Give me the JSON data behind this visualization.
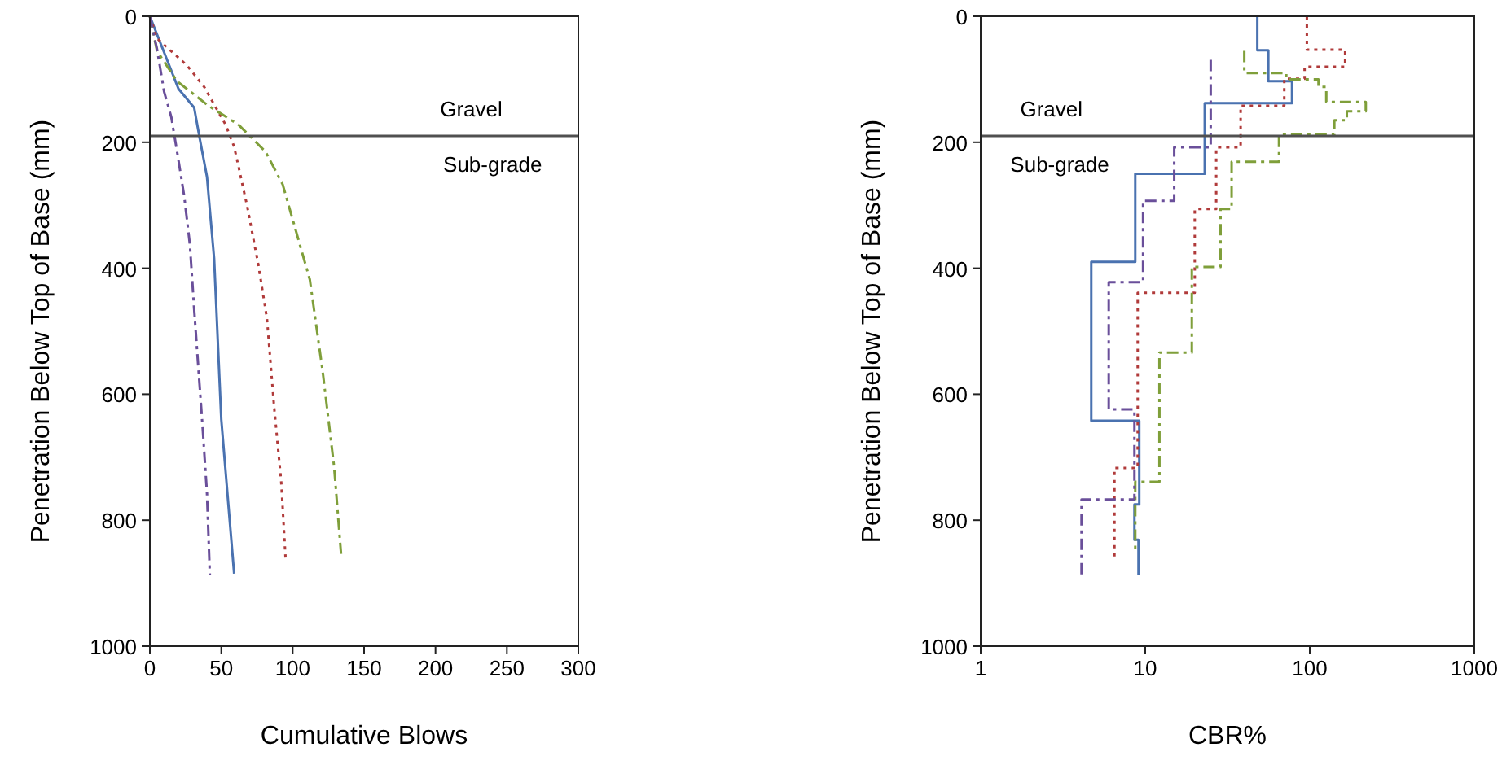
{
  "chart_data": [
    {
      "type": "line",
      "xlabel": "Cumulative Blows",
      "ylabel": "Penetration Below Top of Base (mm)",
      "xlim": [
        0,
        300
      ],
      "xticks": [
        0,
        50,
        100,
        150,
        200,
        250,
        300
      ],
      "ylim": [
        1000,
        0
      ],
      "yticks": [
        0,
        200,
        400,
        600,
        800,
        1000
      ],
      "grid": false,
      "ref_lines": [
        {
          "axis": "y",
          "value": 190,
          "color": "#505050"
        }
      ],
      "annotations": [
        "Gravel",
        "Sub-grade"
      ],
      "series": [
        {
          "color": "#4a72b0",
          "line_style": "solid",
          "x": [
            0,
            20,
            31,
            35,
            40,
            45,
            50,
            59
          ],
          "values": [
            0,
            115,
            145,
            195,
            255,
            385,
            640,
            885
          ]
        },
        {
          "color": "#b03a3a",
          "line_style": "dotted",
          "x": [
            0,
            5,
            26,
            38,
            53,
            59,
            68,
            76,
            82,
            87,
            92,
            95
          ],
          "values": [
            0,
            35,
            78,
            112,
            172,
            207,
            300,
            395,
            480,
            620,
            740,
            860
          ]
        },
        {
          "color": "#7f9f3a",
          "line_style": "dashed",
          "x": [
            0,
            5,
            19,
            41,
            62,
            81,
            93,
            112,
            121,
            129,
            134
          ],
          "values": [
            0,
            55,
            103,
            142,
            172,
            215,
            267,
            418,
            564,
            715,
            857
          ]
        },
        {
          "color": "#6a4f9a",
          "line_style": "dashed",
          "x": [
            0,
            5,
            10,
            15,
            20,
            24,
            28,
            31,
            34,
            37,
            40,
            42
          ],
          "values": [
            0,
            52,
            120,
            160,
            228,
            285,
            362,
            465,
            560,
            655,
            758,
            887
          ]
        }
      ]
    },
    {
      "type": "step",
      "xlabel": "CBR%",
      "ylabel": "Penetration Below Top of Base (mm)",
      "log": "x",
      "xlim": [
        1,
        1000
      ],
      "xticks": [
        1,
        10,
        100,
        1000
      ],
      "ylim": [
        1000,
        0
      ],
      "yticks": [
        0,
        200,
        400,
        600,
        800,
        1000
      ],
      "grid": false,
      "ref_lines": [
        {
          "axis": "y",
          "value": 190,
          "color": "#505050"
        }
      ],
      "annotations": [
        "Gravel",
        "Sub-grade"
      ],
      "series": [
        {
          "color": "#4a72b0",
          "line_style": "solid",
          "x": [
            48,
            56,
            78,
            23,
            8.7,
            4.7,
            9.2,
            8.6,
            9.1,
            9.1
          ],
          "values": [
            0,
            54,
            103,
            138,
            250,
            390,
            642,
            775,
            831,
            887
          ]
        },
        {
          "color": "#b03a3a",
          "line_style": "dotted",
          "x": [
            96,
            164,
            93,
            70,
            38,
            27,
            20,
            9,
            6.5,
            6.5
          ],
          "values": [
            0,
            53,
            80,
            99,
            142,
            208,
            306,
            439,
            717,
            860
          ]
        },
        {
          "color": "#7f9f3a",
          "line_style": "dashed",
          "x": [
            40,
            72,
            113,
            126,
            219,
            168,
            141,
            65,
            33.5,
            28.7,
            19.2,
            12.2,
            8.7,
            8.7
          ],
          "values": [
            55,
            90,
            100,
            112,
            136,
            151,
            165,
            188,
            231,
            306,
            398,
            534,
            739,
            853
          ]
        },
        {
          "color": "#6a4f9a",
          "line_style": "dashed",
          "x": [
            25,
            15,
            9.7,
            6,
            8.6,
            4.1,
            4.1
          ],
          "values": [
            69,
            208,
            293,
            422,
            624,
            767,
            887
          ]
        }
      ]
    }
  ]
}
